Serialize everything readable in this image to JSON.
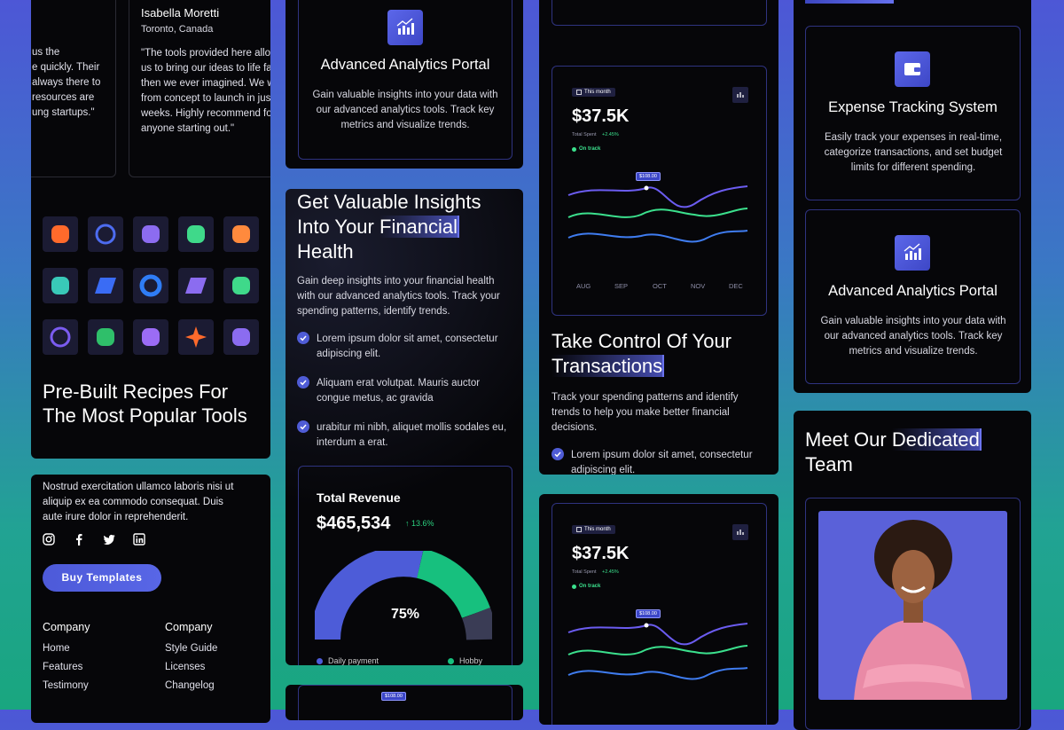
{
  "testimonials": [
    {
      "lines": [
        "us the",
        "e quickly. Their",
        "always there to",
        "resources are",
        "ung startups.\""
      ]
    },
    {
      "name": "Isabella Moretti",
      "location": "Toronto, Canada",
      "lines": [
        "\"The tools provided here allowed",
        "us to bring our ideas to life faster",
        "then we ever imagined. We went",
        "from concept to launch in just",
        "weeks. Highly recommend for",
        "anyone starting out.\""
      ]
    }
  ],
  "tools_card": {
    "title": "Pre-Built Recipes For The Most Popular Tools"
  },
  "footer": {
    "text": "Nostrud exercitation ullamco laboris nisi ut aliquip ex ea commodo consequat. Duis aute irure dolor in reprehenderit.",
    "button": "Buy Templates",
    "menus": [
      {
        "heading": "Company",
        "links": [
          "Home",
          "Features",
          "Testimony"
        ]
      },
      {
        "heading": "Company",
        "links": [
          "Style Guide",
          "Licenses",
          "Changelog"
        ]
      }
    ]
  },
  "features": [
    {
      "title": "Advanced Analytics Portal",
      "text": "Gain valuable insights into your data with our advanced analytics tools. Track key metrics and visualize trends."
    },
    {
      "title": "Expense Tracking System",
      "text": "Easily track your expenses in real-time, categorize transactions, and set budget limits for different spending."
    },
    {
      "title": "Advanced Analytics Portal",
      "text": "Gain valuable insights into your data with our advanced analytics tools. Track key metrics and visualize trends."
    }
  ],
  "insights": {
    "heading": [
      "Get Valuable Insights Into Your",
      "Financial",
      "Health"
    ],
    "text": "Gain deep insights into your financial health with our advanced analytics tools. Track your spending patterns, identify trends.",
    "checks": [
      "Lorem ipsum dolor sit amet, consectetur adipiscing elit.",
      "Aliquam erat volutpat. Mauris auctor congue metus, ac gravida",
      "urabitur mi nibh, aliquet mollis sodales eu, interdum a erat."
    ],
    "revenue": {
      "title": "Total Revenue",
      "amount": "$465,534",
      "change": "↑ 13.6%",
      "gauge": "75%",
      "legend": [
        "Daily payment",
        "Hobby"
      ]
    }
  },
  "spend_widgets": [
    {
      "period": "This month",
      "amount": "$37.5K",
      "label": "Total Spent",
      "change": "+2.45%",
      "status": "On track",
      "tooltip": "$108.00",
      "months": [
        "AUG",
        "SEP",
        "OCT",
        "NOV",
        "DEC"
      ]
    },
    {
      "period": "This month",
      "amount": "$37.5K",
      "label": "Total Spent",
      "change": "+2.45%",
      "status": "On track",
      "tooltip": "$108.00"
    },
    {
      "tooltip": "$108.00"
    }
  ],
  "transactions": {
    "heading": [
      "Take Control Of Your",
      "Transactions"
    ],
    "text": "Track your spending patterns and identify trends to help you make better financial decisions.",
    "checks": [
      "Lorem ipsum dolor sit amet, consectetur adipiscing elit."
    ]
  },
  "team": {
    "heading": [
      "Meet Our",
      "Dedicated",
      "Team"
    ]
  }
}
